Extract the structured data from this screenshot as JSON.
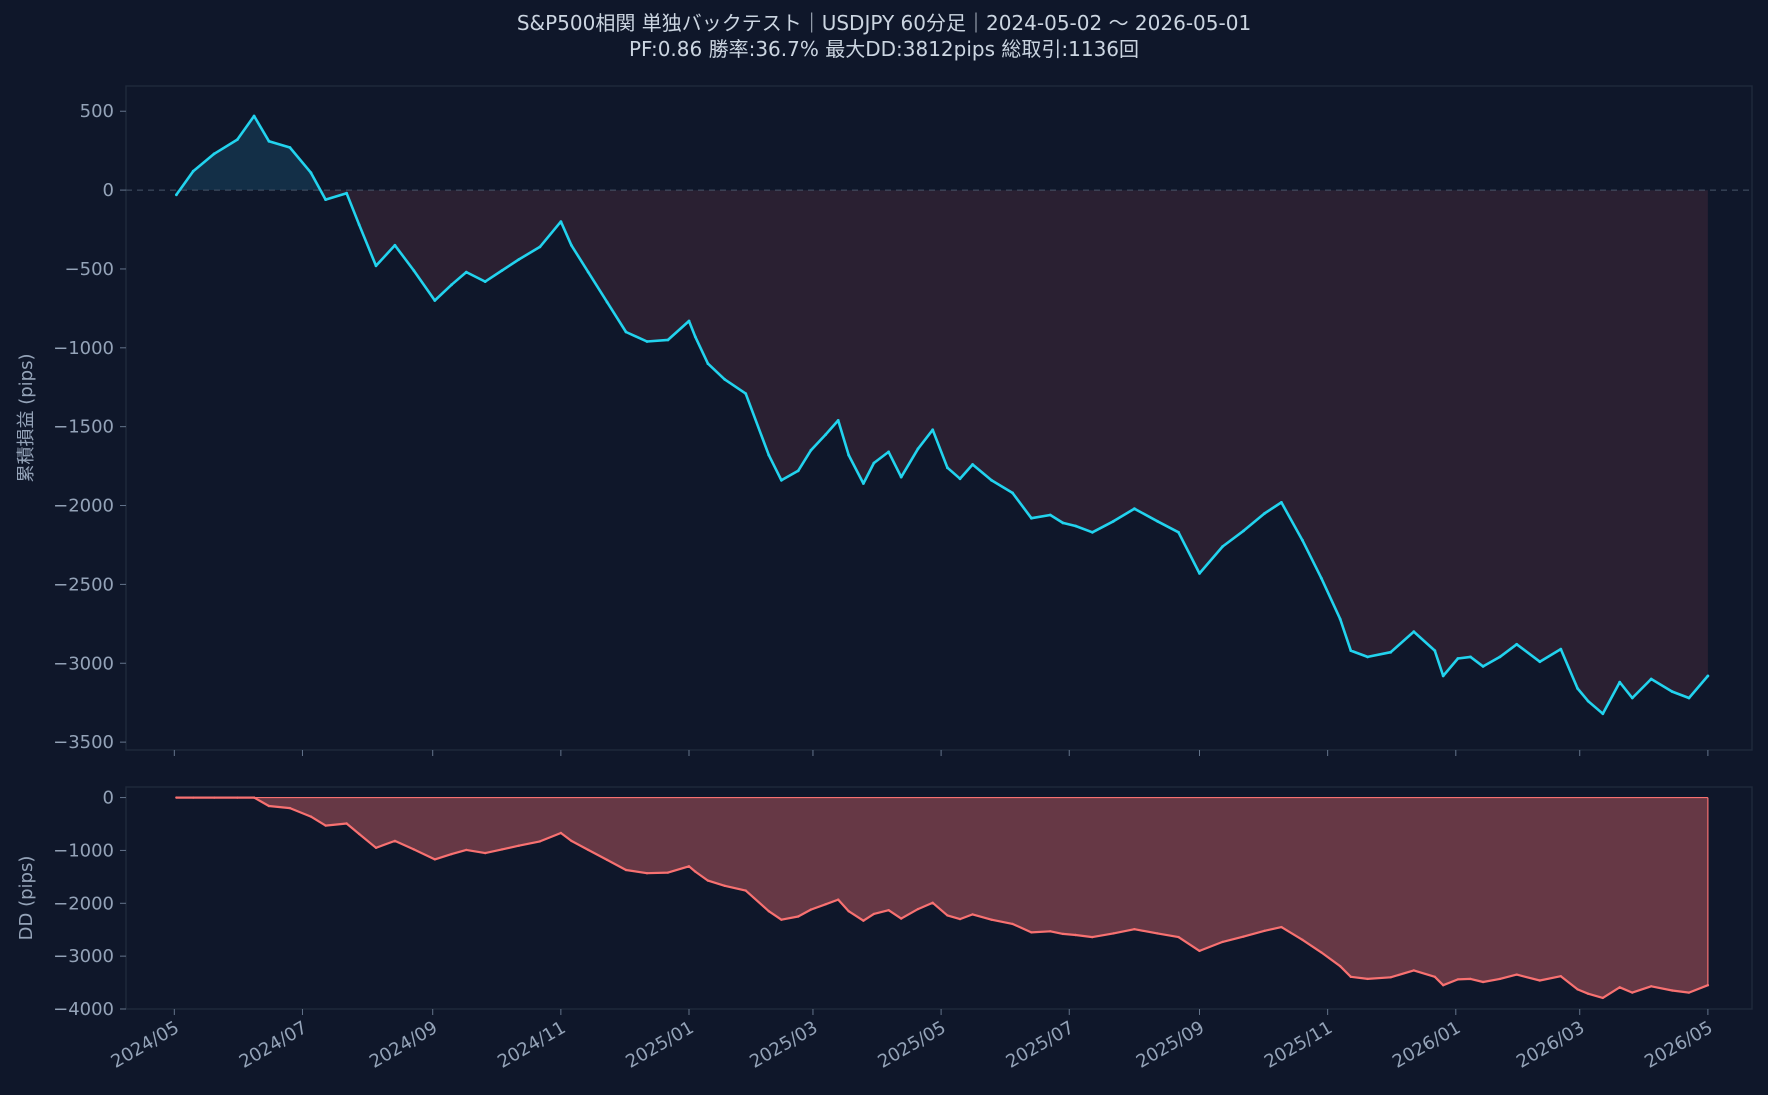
{
  "header": {
    "title": "S&P500相関 単独バックテスト｜USDJPY 60分足｜2024-05-02 〜 2026-05-01",
    "subtitle": "PF:0.86  勝率:36.7%  最大DD:3812pips  総取引:1136回"
  },
  "colors": {
    "background": "#0f172a",
    "equity_line": "#22d3ee",
    "drawdown_line": "#f87171",
    "drawdown_fill": "#6b3a47",
    "negative_area": "#2d2133",
    "positive_area": "#14324a",
    "text": "#94a3b8",
    "frame": "#1e293b"
  },
  "chart_data": [
    {
      "type": "line",
      "name": "equity",
      "ylabel": "累積損益 (pips)",
      "ylim": [
        -3550,
        660
      ],
      "yticks": [
        500,
        0,
        -500,
        -1000,
        -1500,
        -2000,
        -2500,
        -3000,
        -3500
      ],
      "ytick_labels": [
        "500",
        "0",
        "−500",
        "−1000",
        "−1500",
        "−2000",
        "−2500",
        "−3000",
        "−3500"
      ],
      "zero_line": "dashed",
      "x": [
        "2024-05-02",
        "2024-05-10",
        "2024-05-20",
        "2024-05-31",
        "2024-06-08",
        "2024-06-15",
        "2024-06-25",
        "2024-07-05",
        "2024-07-12",
        "2024-07-22",
        "2024-07-28",
        "2024-08-05",
        "2024-08-14",
        "2024-08-23",
        "2024-09-02",
        "2024-09-10",
        "2024-09-17",
        "2024-09-26",
        "2024-10-04",
        "2024-10-12",
        "2024-10-22",
        "2024-11-01",
        "2024-11-06",
        "2024-11-14",
        "2024-11-23",
        "2024-12-02",
        "2024-12-12",
        "2024-12-22",
        "2025-01-01",
        "2025-01-04",
        "2025-01-10",
        "2025-01-18",
        "2025-01-28",
        "2025-02-08",
        "2025-02-14",
        "2025-02-22",
        "2025-02-28",
        "2025-03-07",
        "2025-03-13",
        "2025-03-18",
        "2025-03-25",
        "2025-03-30",
        "2025-04-06",
        "2025-04-12",
        "2025-04-20",
        "2025-04-27",
        "2025-05-04",
        "2025-05-10",
        "2025-05-16",
        "2025-05-25",
        "2025-06-04",
        "2025-06-13",
        "2025-06-22",
        "2025-06-28",
        "2025-07-04",
        "2025-07-12",
        "2025-07-22",
        "2025-08-01",
        "2025-08-12",
        "2025-08-22",
        "2025-09-01",
        "2025-09-12",
        "2025-09-22",
        "2025-10-02",
        "2025-10-10",
        "2025-10-20",
        "2025-10-29",
        "2025-11-07",
        "2025-11-12",
        "2025-11-20",
        "2025-12-01",
        "2025-12-12",
        "2025-12-22",
        "2025-12-26",
        "2026-01-02",
        "2026-01-08",
        "2026-01-14",
        "2026-01-22",
        "2026-01-30",
        "2026-02-10",
        "2026-02-20",
        "2026-02-28",
        "2026-03-05",
        "2026-03-12",
        "2026-03-20",
        "2026-03-26",
        "2026-04-04",
        "2026-04-14",
        "2026-04-22",
        "2026-05-01"
      ],
      "y": [
        -30,
        120,
        230,
        320,
        470,
        310,
        270,
        110,
        -60,
        -20,
        -220,
        -480,
        -350,
        -510,
        -700,
        -600,
        -520,
        -580,
        -510,
        -440,
        -360,
        -200,
        -350,
        -520,
        -710,
        -900,
        -960,
        -950,
        -830,
        -930,
        -1100,
        -1200,
        -1290,
        -1680,
        -1840,
        -1780,
        -1650,
        -1550,
        -1460,
        -1680,
        -1860,
        -1730,
        -1660,
        -1820,
        -1640,
        -1520,
        -1760,
        -1830,
        -1740,
        -1840,
        -1920,
        -2080,
        -2060,
        -2110,
        -2130,
        -2170,
        -2100,
        -2020,
        -2100,
        -2170,
        -2430,
        -2260,
        -2160,
        -2050,
        -1980,
        -2220,
        -2460,
        -2720,
        -2920,
        -2960,
        -2930,
        -2800,
        -2920,
        -3080,
        -2970,
        -2960,
        -3020,
        -2960,
        -2880,
        -2990,
        -2910,
        -3160,
        -3240,
        -3320,
        -3120,
        -3220,
        -3100,
        -3180,
        -3220,
        -3080
      ]
    },
    {
      "type": "area",
      "name": "drawdown",
      "ylabel": "DD (pips)",
      "ylim": [
        -4000,
        200
      ],
      "yticks": [
        0,
        -1000,
        -2000,
        -3000,
        -4000
      ],
      "ytick_labels": [
        "0",
        "−1000",
        "−2000",
        "−3000",
        "−4000"
      ],
      "xtick_labels": [
        "2024/05",
        "2024/07",
        "2024/09",
        "2024/11",
        "2025/01",
        "2025/03",
        "2025/05",
        "2025/07",
        "2025/09",
        "2025/11",
        "2026/01",
        "2026/03",
        "2026/05"
      ],
      "x": [
        "2024-05-02",
        "2024-05-10",
        "2024-05-20",
        "2024-05-31",
        "2024-06-08",
        "2024-06-15",
        "2024-06-25",
        "2024-07-05",
        "2024-07-12",
        "2024-07-22",
        "2024-07-28",
        "2024-08-05",
        "2024-08-14",
        "2024-08-23",
        "2024-09-02",
        "2024-09-10",
        "2024-09-17",
        "2024-09-26",
        "2024-10-04",
        "2024-10-12",
        "2024-10-22",
        "2024-11-01",
        "2024-11-06",
        "2024-11-14",
        "2024-11-23",
        "2024-12-02",
        "2024-12-12",
        "2024-12-22",
        "2025-01-01",
        "2025-01-04",
        "2025-01-10",
        "2025-01-18",
        "2025-01-28",
        "2025-02-08",
        "2025-02-14",
        "2025-02-22",
        "2025-02-28",
        "2025-03-07",
        "2025-03-13",
        "2025-03-18",
        "2025-03-25",
        "2025-03-30",
        "2025-04-06",
        "2025-04-12",
        "2025-04-20",
        "2025-04-27",
        "2025-05-04",
        "2025-05-10",
        "2025-05-16",
        "2025-05-25",
        "2025-06-04",
        "2025-06-13",
        "2025-06-22",
        "2025-06-28",
        "2025-07-04",
        "2025-07-12",
        "2025-07-22",
        "2025-08-01",
        "2025-08-12",
        "2025-08-22",
        "2025-09-01",
        "2025-09-12",
        "2025-09-22",
        "2025-10-02",
        "2025-10-10",
        "2025-10-20",
        "2025-10-29",
        "2025-11-07",
        "2025-11-12",
        "2025-11-20",
        "2025-12-01",
        "2025-12-12",
        "2025-12-22",
        "2025-12-26",
        "2026-01-02",
        "2026-01-08",
        "2026-01-14",
        "2026-01-22",
        "2026-01-30",
        "2026-02-10",
        "2026-02-20",
        "2026-02-28",
        "2026-03-05",
        "2026-03-12",
        "2026-03-20",
        "2026-03-26",
        "2026-04-04",
        "2026-04-14",
        "2026-04-22",
        "2026-05-01"
      ],
      "y": [
        0,
        0,
        0,
        0,
        0,
        -160,
        -200,
        -360,
        -530,
        -490,
        -690,
        -950,
        -820,
        -980,
        -1170,
        -1070,
        -990,
        -1050,
        -980,
        -910,
        -830,
        -670,
        -820,
        -990,
        -1180,
        -1370,
        -1430,
        -1420,
        -1300,
        -1400,
        -1570,
        -1670,
        -1760,
        -2150,
        -2310,
        -2250,
        -2120,
        -2020,
        -1930,
        -2150,
        -2330,
        -2200,
        -2130,
        -2290,
        -2110,
        -1990,
        -2230,
        -2300,
        -2210,
        -2310,
        -2390,
        -2550,
        -2530,
        -2580,
        -2600,
        -2640,
        -2570,
        -2490,
        -2570,
        -2640,
        -2900,
        -2730,
        -2630,
        -2520,
        -2450,
        -2690,
        -2930,
        -3190,
        -3390,
        -3430,
        -3400,
        -3270,
        -3390,
        -3550,
        -3440,
        -3430,
        -3490,
        -3430,
        -3350,
        -3460,
        -3380,
        -3630,
        -3710,
        -3790,
        -3590,
        -3690,
        -3570,
        -3650,
        -3690,
        -3550
      ]
    }
  ]
}
